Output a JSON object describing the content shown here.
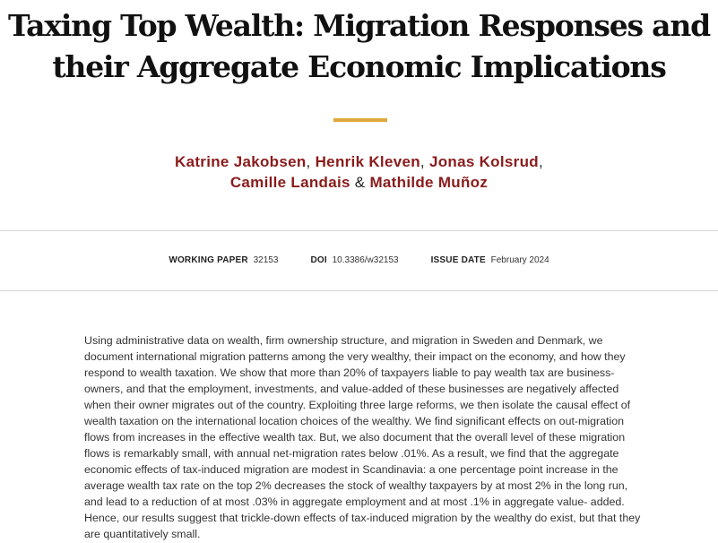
{
  "paper": {
    "title_line1": "Taxing Top Wealth: Migration Responses and",
    "title_line2": "their Aggregate Economic Implications",
    "accent_color": "#e0a93b",
    "author_color": "#8a1b1b"
  },
  "authors": {
    "a1": "Katrine Jakobsen",
    "a2": "Henrik Kleven",
    "a3": "Jonas Kolsrud",
    "a4": "Camille Landais",
    "a5": "Mathilde Muñoz",
    "sep_comma": ",",
    "sep_and": "&"
  },
  "meta": {
    "working_paper_label": "WORKING PAPER",
    "working_paper_value": "32153",
    "doi_label": "DOI",
    "doi_value": "10.3386/w32153",
    "issue_date_label": "ISSUE DATE",
    "issue_date_value": "February 2024"
  },
  "abstract": {
    "text": "Using administrative data on wealth, firm ownership structure, and migration in Sweden and Denmark, we document international migration patterns among the very wealthy, their impact on the economy, and how they respond to wealth taxation. We show that more than 20% of taxpayers liable to pay wealth tax are business-owners, and that the employment, investments, and value-added of these businesses are negatively affected when their owner migrates out of the country. Exploiting three large reforms, we then isolate the causal effect of wealth taxation on the international location choices of the wealthy. We find significant effects on out-migration flows from increases in the effective wealth tax. But, we also document that the overall level of these migration flows is remarkably small, with annual net-migration rates below .01%. As a result, we find that the aggregate economic effects of tax-induced migration are modest in Scandinavia: a one percentage point increase in the average wealth tax rate on the top 2% decreases the stock of wealthy taxpayers by at most 2% in the long run, and lead to a reduction of at most .03% in aggregate employment and at most .1% in aggregate value- added. Hence, our results suggest that trickle-down effects of tax-induced migration by the wealthy do exist, but that they are quantitatively small."
  }
}
